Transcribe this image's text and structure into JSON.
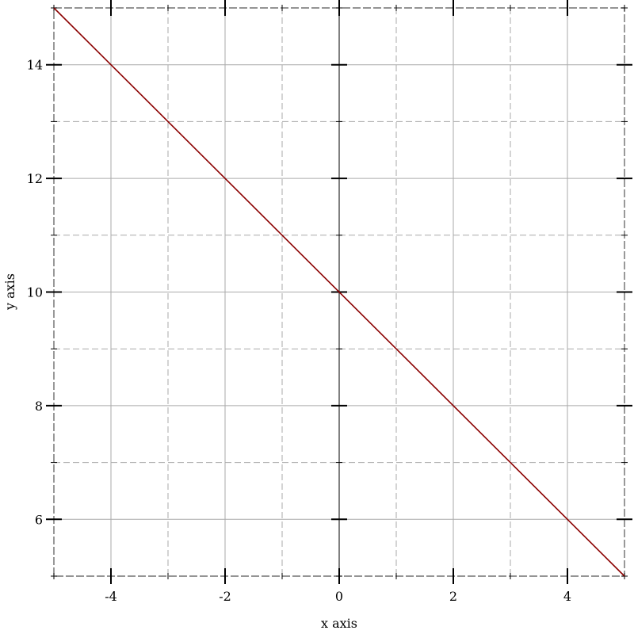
{
  "chart_data": {
    "type": "line",
    "title": "",
    "xlabel": "x axis",
    "ylabel": "y axis",
    "xlim": [
      -5,
      5
    ],
    "ylim": [
      5,
      15
    ],
    "x_major_ticks": [
      -4,
      -2,
      0,
      2,
      4
    ],
    "x_minor_ticks": [
      -3,
      -1,
      1,
      3
    ],
    "y_major_ticks": [
      6,
      8,
      10,
      12,
      14
    ],
    "y_minor_ticks": [
      7,
      9,
      11,
      13
    ],
    "x_tick_labels": [
      "-4",
      "-2",
      "0",
      "2",
      "4"
    ],
    "y_tick_labels": [
      "6",
      "8",
      "10",
      "12",
      "14"
    ],
    "grid": true,
    "series": [
      {
        "x": [
          -5,
          5
        ],
        "y": [
          15,
          5
        ],
        "color": "#8b0000"
      }
    ]
  }
}
